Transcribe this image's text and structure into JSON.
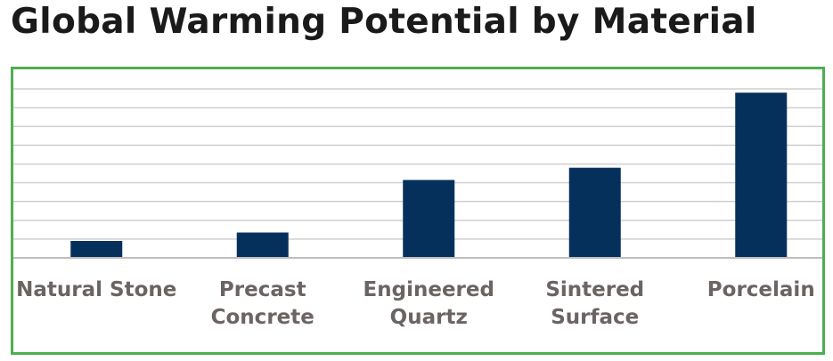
{
  "chart_data": {
    "type": "bar",
    "title": "Global Warming Potential by Material",
    "categories": [
      [
        "Natural Stone"
      ],
      [
        "Precast",
        "Concrete"
      ],
      [
        "Engineered",
        "Quartz"
      ],
      [
        "Sintered",
        "Surface"
      ],
      [
        "Porcelain"
      ]
    ],
    "values": [
      0.9,
      1.35,
      4.15,
      4.8,
      8.8
    ],
    "ylim": [
      0,
      9
    ],
    "gridlines": 9,
    "xlabel": "",
    "ylabel": "",
    "bar_color": "#06305c",
    "grid_color": "#cfcfcf",
    "frame_color": "#4caf50"
  }
}
